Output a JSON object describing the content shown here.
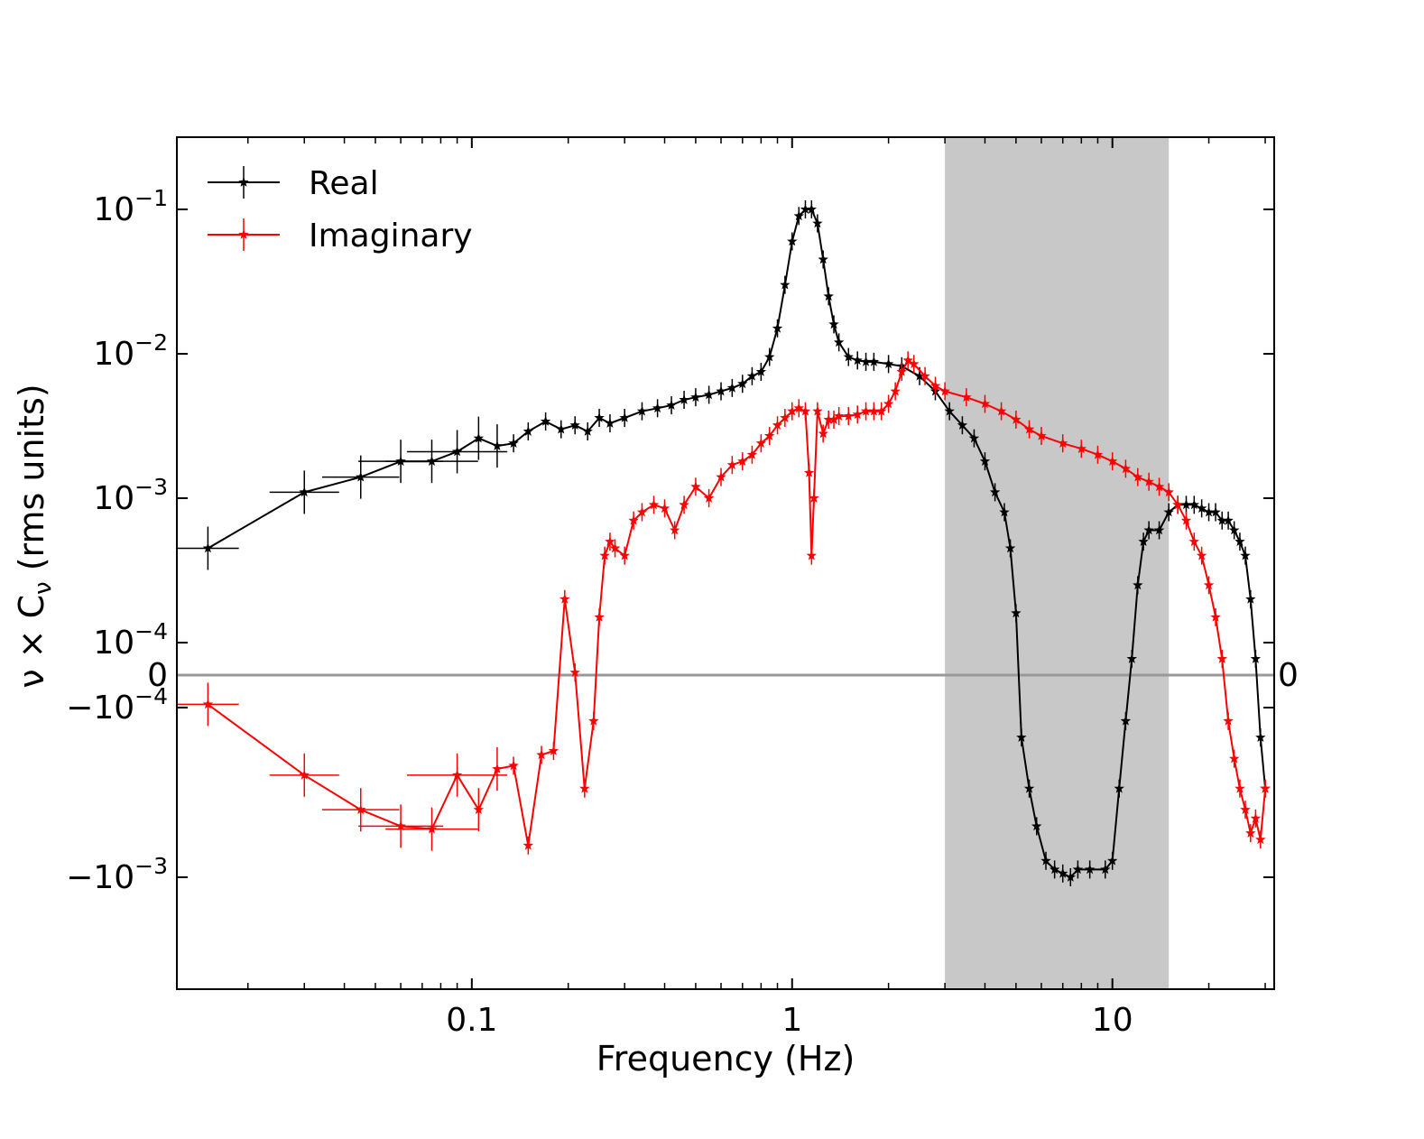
{
  "chart_data": {
    "type": "line",
    "xlabel": "Frequency (Hz)",
    "ylabel_parts": [
      "ν × C",
      "ν",
      " (rms units)"
    ],
    "xscale": "log",
    "yscale": "symlog",
    "xlim": [
      0.012,
      32
    ],
    "ylim": [
      -0.003,
      0.2
    ],
    "x_ticks": [
      {
        "value": 0.1,
        "label": "0.1"
      },
      {
        "value": 1,
        "label": "1"
      },
      {
        "value": 10,
        "label": "10"
      }
    ],
    "y_ticks": [
      {
        "value": 0.1,
        "base": "10",
        "exp": "−1"
      },
      {
        "value": 0.01,
        "base": "10",
        "exp": "−2"
      },
      {
        "value": 0.001,
        "base": "10",
        "exp": "−3"
      },
      {
        "value": 0.0001,
        "base": "10",
        "exp": "−4"
      },
      {
        "value": 0,
        "base": "0",
        "exp": ""
      },
      {
        "value": -0.0001,
        "base": "−10",
        "exp": "−4"
      },
      {
        "value": -0.001,
        "base": "−10",
        "exp": "−3"
      }
    ],
    "zero_right_label": "0",
    "shaded_region": {
      "x_start": 3.0,
      "x_end": 15.0,
      "color": "#c8c8c8"
    },
    "legend": {
      "position": "top-left"
    },
    "series": [
      {
        "name": "Real",
        "color": "#000000",
        "x": [
          0.015,
          0.03,
          0.045,
          0.06,
          0.075,
          0.09,
          0.105,
          0.12,
          0.135,
          0.15,
          0.17,
          0.19,
          0.21,
          0.23,
          0.25,
          0.27,
          0.3,
          0.34,
          0.38,
          0.42,
          0.46,
          0.5,
          0.55,
          0.6,
          0.65,
          0.7,
          0.75,
          0.8,
          0.85,
          0.9,
          0.95,
          1.0,
          1.05,
          1.1,
          1.15,
          1.2,
          1.25,
          1.3,
          1.35,
          1.4,
          1.5,
          1.6,
          1.7,
          1.8,
          2.0,
          2.2,
          2.5,
          2.8,
          3.1,
          3.4,
          3.7,
          4.0,
          4.3,
          4.6,
          4.8,
          5.0,
          5.2,
          5.5,
          5.8,
          6.2,
          6.6,
          7.0,
          7.4,
          7.8,
          8.5,
          9.5,
          10.0,
          10.5,
          11.0,
          11.5,
          12.0,
          12.5,
          13.0,
          14.0,
          15.0,
          16.0,
          17.0,
          18.0,
          19.0,
          20.0,
          21.0,
          22.0,
          23.0,
          24.0,
          25.0,
          26.0,
          27.0,
          28.0,
          29.0,
          30.0
        ],
        "y": [
          0.00045,
          0.0011,
          0.0014,
          0.0018,
          0.0018,
          0.0021,
          0.0026,
          0.0023,
          0.0024,
          0.0029,
          0.0034,
          0.003,
          0.0032,
          0.0029,
          0.0036,
          0.0033,
          0.0036,
          0.004,
          0.0042,
          0.0044,
          0.0048,
          0.005,
          0.0052,
          0.0055,
          0.0058,
          0.0062,
          0.007,
          0.0075,
          0.0095,
          0.015,
          0.03,
          0.06,
          0.09,
          0.1,
          0.1,
          0.08,
          0.045,
          0.025,
          0.016,
          0.012,
          0.0095,
          0.009,
          0.0088,
          0.0088,
          0.0085,
          0.0082,
          0.007,
          0.0055,
          0.004,
          0.0032,
          0.0026,
          0.0018,
          0.0011,
          0.0008,
          0.00045,
          0.00016,
          -0.00015,
          -0.0003,
          -0.0005,
          -0.0008,
          -0.0009,
          -0.00095,
          -0.001,
          -0.0009,
          -0.0009,
          -0.0009,
          -0.0008,
          -0.0003,
          -0.00012,
          5e-05,
          0.00025,
          0.0005,
          0.0006,
          0.0006,
          0.0008,
          0.0009,
          0.0009,
          0.0009,
          0.00085,
          0.0008,
          0.0008,
          0.0007,
          0.0007,
          0.0006,
          0.0005,
          0.0004,
          0.0002,
          5e-05,
          -0.00015,
          -0.0003
        ]
      },
      {
        "name": "Imaginary",
        "color": "#ff0000",
        "x": [
          0.015,
          0.03,
          0.045,
          0.06,
          0.075,
          0.09,
          0.105,
          0.12,
          0.135,
          0.15,
          0.165,
          0.18,
          0.195,
          0.21,
          0.225,
          0.24,
          0.25,
          0.26,
          0.27,
          0.28,
          0.3,
          0.32,
          0.34,
          0.37,
          0.4,
          0.43,
          0.46,
          0.5,
          0.55,
          0.6,
          0.65,
          0.7,
          0.75,
          0.8,
          0.85,
          0.9,
          0.95,
          1.0,
          1.05,
          1.1,
          1.13,
          1.15,
          1.17,
          1.2,
          1.25,
          1.3,
          1.35,
          1.4,
          1.5,
          1.6,
          1.7,
          1.8,
          1.9,
          2.0,
          2.1,
          2.2,
          2.3,
          2.4,
          2.6,
          2.8,
          3.0,
          3.5,
          4.0,
          4.5,
          5.0,
          5.5,
          6.0,
          7.0,
          8.0,
          9.0,
          10.0,
          11.0,
          12.0,
          13.0,
          14.0,
          15.0,
          16.0,
          17.0,
          18.0,
          19.0,
          20.0,
          21.0,
          22.0,
          23.0,
          24.0,
          25.0,
          26.0,
          27.0,
          28.0,
          29.0,
          30.0
        ],
        "y": [
          -9e-05,
          -0.00025,
          -0.0004,
          -0.0005,
          -0.00052,
          -0.00025,
          -0.0004,
          -0.00023,
          -0.00022,
          -0.00065,
          -0.00019,
          -0.00018,
          0.0002,
          8e-06,
          -0.0003,
          -0.00012,
          0.00015,
          0.0004,
          0.0005,
          0.00045,
          0.0004,
          0.0007,
          0.0008,
          0.0009,
          0.00085,
          0.0006,
          0.0009,
          0.0012,
          0.001,
          0.0014,
          0.0017,
          0.0018,
          0.002,
          0.0024,
          0.0027,
          0.0032,
          0.0036,
          0.004,
          0.0042,
          0.004,
          0.0015,
          0.0004,
          0.001,
          0.004,
          0.0028,
          0.0035,
          0.0035,
          0.0037,
          0.0037,
          0.0038,
          0.004,
          0.004,
          0.004,
          0.0045,
          0.0055,
          0.0075,
          0.009,
          0.0085,
          0.007,
          0.006,
          0.0055,
          0.005,
          0.0045,
          0.004,
          0.0035,
          0.003,
          0.0027,
          0.0024,
          0.0022,
          0.002,
          0.0018,
          0.0016,
          0.0014,
          0.0013,
          0.0012,
          0.0011,
          0.0009,
          0.0007,
          0.0005,
          0.0004,
          0.00025,
          0.00015,
          5e-05,
          -0.00012,
          -0.0002,
          -0.0003,
          -0.0004,
          -0.00055,
          -0.00045,
          -0.0006,
          -0.0003
        ]
      }
    ]
  }
}
